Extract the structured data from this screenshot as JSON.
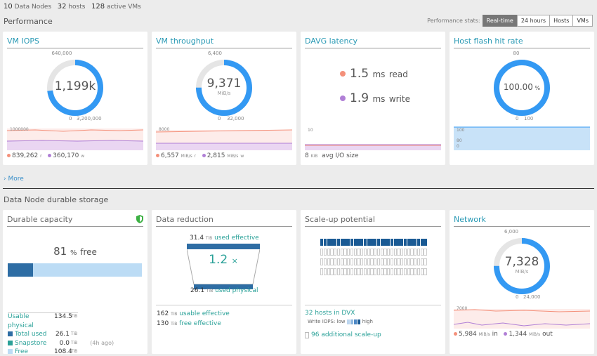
{
  "header": {
    "data_nodes_count": "10",
    "data_nodes_label": "Data Nodes",
    "hosts_count": "32",
    "hosts_label": "hosts",
    "vms_count": "128",
    "vms_label": "active VMs"
  },
  "performance": {
    "section_title": "Performance",
    "stats_label": "Performance stats:",
    "buttons": [
      "Real-time",
      "24 hours",
      "Hosts",
      "VMs"
    ],
    "active_button": "Real-time"
  },
  "vm_iops": {
    "title": "VM IOPS",
    "value": "1,199k",
    "max_top": "640,000",
    "min": "0",
    "max": "3,200,000",
    "spark_label": "1000000",
    "read_value": "839,262",
    "read_unit": "r",
    "write_value": "360,170",
    "write_unit": "w",
    "fill_fraction": 0.73
  },
  "vm_throughput": {
    "title": "VM throughput",
    "value": "9,371",
    "unit": "MiB/s",
    "max_top": "6,400",
    "min": "0",
    "max": "32,000",
    "spark_label": "8000",
    "read_value": "6,557",
    "read_unit": "MiB/s",
    "read_suffix": "r",
    "write_value": "2,815",
    "write_unit": "MiB/s",
    "write_suffix": "w",
    "fill_fraction": 0.75
  },
  "davg_latency": {
    "title": "DAVG latency",
    "read_value": "1.5",
    "read_unit": "ms",
    "read_label": "read",
    "write_value": "1.9",
    "write_unit": "ms",
    "write_label": "write",
    "spark_label": "10",
    "avg_size_value": "8",
    "avg_size_unit": "KiB",
    "avg_size_label": "avg I/O size"
  },
  "host_flash": {
    "title": "Host flash hit rate",
    "value": "100.00",
    "unit": "%",
    "max_top": "80",
    "min": "0",
    "max": "100",
    "spark_top": "100",
    "spark_mid": "80",
    "spark_bottom": "0",
    "fill_fraction": 1.0
  },
  "more_link": "More",
  "storage": {
    "section_title": "Data Node durable storage"
  },
  "durable_capacity": {
    "title": "Durable capacity",
    "free_pct": "81",
    "free_unit": "%",
    "free_label": "free",
    "used_fraction": 0.19,
    "rows": [
      {
        "label": "Usable physical",
        "value": "134.5",
        "unit": "TiB",
        "note": "",
        "color": ""
      },
      {
        "label": "Total used",
        "value": "26.1",
        "unit": "TiB",
        "note": "",
        "color": "#2e6da4"
      },
      {
        "label": "Snapstore",
        "value": "0.0",
        "unit": "TiB",
        "note": "(4h ago)",
        "color": "#2aa198"
      },
      {
        "label": "Free",
        "value": "108.4",
        "unit": "TiB",
        "note": "",
        "color": "#bcdcf5"
      }
    ]
  },
  "data_reduction": {
    "title": "Data reduction",
    "top_value": "31.4",
    "top_unit": "TiB",
    "top_label": "used effective",
    "ratio": "1.2",
    "ratio_unit": "×",
    "bottom_value": "26.1",
    "bottom_unit": "TiB",
    "bottom_label": "used physical",
    "usable_value": "162",
    "usable_unit": "TiB",
    "usable_label": "usable effective",
    "free_value": "130",
    "free_unit": "TiB",
    "free_label": "free effective"
  },
  "scale_up": {
    "title": "Scale-up potential",
    "hosts_label": "32 hosts in DVX",
    "write_iops_label": "Write IOPS:",
    "low_label": "low",
    "high_label": "high",
    "additional_label": "96 additional scale-up",
    "filled_cells": 32,
    "total_cells": 128
  },
  "network": {
    "title": "Network",
    "value": "7,328",
    "unit": "MiB/s",
    "max_top": "6,000",
    "min": "0",
    "max": "24,000",
    "spark_label": "7000",
    "in_value": "5,984",
    "in_unit": "MiB/s",
    "in_label": "in",
    "out_value": "1,344",
    "out_unit": "MiB/s",
    "out_label": "out",
    "fill_fraction": 0.75
  },
  "colors": {
    "accent": "#3399f3",
    "read": "#f4907a",
    "write": "#b07fd6",
    "teal": "#2aa198"
  }
}
